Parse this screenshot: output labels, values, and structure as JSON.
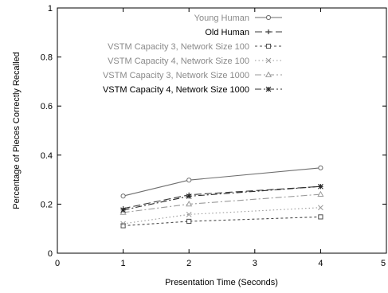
{
  "chart_data": {
    "type": "line",
    "xlabel": "Presentation Time (Seconds)",
    "ylabel": "Percentage of Pieces Correctly Recalled",
    "xlim": [
      0,
      5
    ],
    "ylim": [
      0,
      1
    ],
    "xticks": [
      "0",
      "1",
      "2",
      "3",
      "4",
      "5"
    ],
    "yticks": [
      "0",
      "0.2",
      "0.4",
      "0.6",
      "0.8",
      "1"
    ],
    "grid": false,
    "legend_position": "top-right",
    "x": [
      1,
      2,
      4
    ],
    "series": [
      {
        "name": "Young Human",
        "values": [
          0.233,
          0.298,
          0.348
        ],
        "color": "#6e6e6e",
        "dash": "solid",
        "marker": "diamond"
      },
      {
        "name": "Old Human",
        "values": [
          0.182,
          0.238,
          0.272
        ],
        "color": "#3a3a3a",
        "dash": "long-dash",
        "marker": "plus"
      },
      {
        "name": "VSTM Capacity 3, Network Size 100",
        "values": [
          0.112,
          0.13,
          0.148
        ],
        "color": "#4a4a4a",
        "dash": "short-dash",
        "marker": "square"
      },
      {
        "name": "VSTM Capacity 4, Network Size 100",
        "values": [
          0.12,
          0.158,
          0.186
        ],
        "color": "#9a9a9a",
        "dash": "dotted",
        "marker": "x"
      },
      {
        "name": "VSTM Capacity 3, Network Size 1000",
        "values": [
          0.166,
          0.2,
          0.24
        ],
        "color": "#9a9a9a",
        "dash": "dash-dot",
        "marker": "triangle"
      },
      {
        "name": "VSTM Capacity 4, Network Size 1000",
        "values": [
          0.176,
          0.232,
          0.272
        ],
        "color": "#2a2a2a",
        "dash": "dash-dot",
        "marker": "star"
      }
    ]
  }
}
